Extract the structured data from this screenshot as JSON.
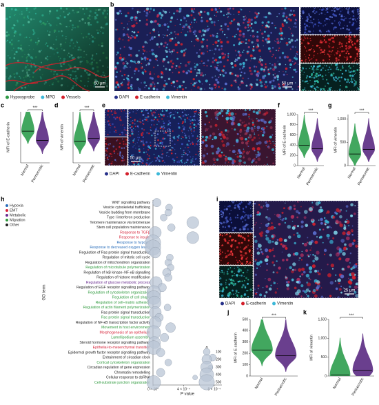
{
  "panels": {
    "a": {
      "label": "a",
      "scale_bar": "50 μm",
      "legend": [
        {
          "name": "Hypoxyprobe",
          "color": "#2f9a46"
        },
        {
          "name": "MPO",
          "color": "#3cb8d8"
        },
        {
          "name": "Vessels",
          "color": "#d4202c"
        }
      ]
    },
    "b": {
      "label": "b",
      "scale_bar": "50 μm",
      "legend": [
        {
          "name": "DAPI",
          "color": "#27318a"
        },
        {
          "name": "E-cadherin",
          "color": "#d4202c"
        },
        {
          "name": "Vimentin",
          "color": "#3cb8d8"
        }
      ]
    },
    "e": {
      "label": "e",
      "scale_bar": "50 μm",
      "legend": [
        {
          "name": "DAPI",
          "color": "#27318a"
        },
        {
          "name": "E-cadherin",
          "color": "#d4202c"
        },
        {
          "name": "Vimentin",
          "color": "#3cb8d8"
        }
      ]
    },
    "i": {
      "label": "i",
      "scale_bar": "25 μm",
      "legend": [
        {
          "name": "DAPI",
          "color": "#27318a"
        },
        {
          "name": "E-cadherin",
          "color": "#d4202c"
        },
        {
          "name": "Vimentin",
          "color": "#3cb8d8"
        }
      ]
    }
  },
  "chart_data": [
    {
      "type": "violin",
      "label": "c",
      "ylabel": "MFI of E-cadherin",
      "categories": [
        "Normal",
        "Perinecrotic"
      ],
      "values": [
        620,
        440
      ],
      "colors": [
        "#2e9d4e",
        "#5a2a82"
      ],
      "annotation": "***",
      "ylim": [
        0,
        1000
      ]
    },
    {
      "type": "violin",
      "label": "d",
      "ylabel": "MFI of vimentin",
      "categories": [
        "Normal",
        "Perinecrotic"
      ],
      "values": [
        420,
        480
      ],
      "colors": [
        "#2e9d4e",
        "#5a2a82"
      ],
      "annotation": "***",
      "ylim": [
        0,
        1000
      ]
    },
    {
      "type": "violin",
      "label": "f",
      "ylabel": "MFI of E-cadherin",
      "categories": [
        "Normal",
        "Perinecrotic"
      ],
      "values": [
        400,
        330
      ],
      "colors": [
        "#2e9d4e",
        "#5a2a82"
      ],
      "annotation": "***",
      "ylim": [
        0,
        1000
      ],
      "yticks": [
        0,
        200,
        400,
        600,
        800,
        {
          "value": 1000,
          "label": "1,000"
        }
      ]
    },
    {
      "type": "violin",
      "label": "g",
      "ylabel": "MFI of vimentin",
      "categories": [
        "Normal",
        "Perinecrotic"
      ],
      "values": [
        250,
        350
      ],
      "colors": [
        "#2e9d4e",
        "#5a2a82"
      ],
      "annotation": "***",
      "ylim": [
        0,
        1100
      ],
      "yticks": [
        0,
        500,
        {
          "value": 1000,
          "label": "1,000"
        }
      ]
    },
    {
      "type": "violin",
      "label": "j",
      "ylabel": "MFI of E-cadherin",
      "categories": [
        "Normal",
        "Perinecrotic"
      ],
      "values": [
        230,
        180
      ],
      "colors": [
        "#2e9d4e",
        "#5a2a82"
      ],
      "annotation": "***",
      "ylim": [
        0,
        500
      ],
      "yticks": [
        0,
        100,
        200,
        300,
        400,
        500
      ]
    },
    {
      "type": "violin",
      "label": "k",
      "ylabel": "MFI of vimentin",
      "categories": [
        "Normal",
        "Perinecrotic"
      ],
      "values": [
        30,
        150
      ],
      "colors": [
        "#2e9d4e",
        "#5a2a82"
      ],
      "annotation": "***",
      "ylim": [
        0,
        1500
      ],
      "yticks": [
        0,
        500,
        {
          "value": 1000,
          "label": "1,000"
        },
        {
          "value": 1500,
          "label": "1,500"
        }
      ]
    },
    {
      "type": "bubble",
      "label": "h",
      "ylabel": "GO term",
      "xlabel": "P value",
      "color": "#b9c6d6",
      "groups": [
        {
          "name": "Hypoxia",
          "color": "#2a6ebb"
        },
        {
          "name": "EMT",
          "color": "#d6243a"
        },
        {
          "name": "Metabolic",
          "color": "#6a2c91"
        },
        {
          "name": "Migration",
          "color": "#2f9a3e"
        },
        {
          "name": "Other",
          "color": "#222222"
        }
      ],
      "categories": [
        "WNT signalling pathway",
        "Vesicle cytoskeletal trafficking",
        "Vesicle budding from membrane",
        "Type I interferon production",
        "Telomere maintenance via telomerase",
        "Stem cell population maintenance",
        "Response to TGFβ",
        "Response to insulin",
        "Response to hypoxia",
        "Response to decreased oxygen levels",
        "Regulation of Ras protein signal transduction",
        "Regulation of mitotic cell cycle",
        "Regulation of mitochondrion organization",
        "Regulation of microtubule polymerization",
        "Regulation of IκB kinase–NF-κB signalling",
        "Regulation of histone modification",
        "Regulation of glucose metabolic process",
        "Regulation of EGF receptor signalling pathway",
        "Regulation of cytoskeleton organization",
        "Regulation of cell shape",
        "Regulation of cell–matrix adhesion",
        "Regulation of actin filament polymerization",
        "Ras protein signal transduction",
        "Rac protein signal transduction",
        "Regulation of NF-κB transcription factor activity",
        "Movement in host environment",
        "Morphogenesis of an epithelium",
        "Lamellipodium assembly",
        "Steroid hormone receptor signalling pathway",
        "Epithelial-to-mesenchymal transition",
        "Epidermal growth factor receptor signalling pathway",
        "Entrainment of circadian clock",
        "Cortical cytoskeleton organization",
        "Circadian regulation of gene expression",
        "Chromatin remodelling",
        "Cellular response to dsRNA",
        "Cell-substrate junction organization"
      ],
      "term_group": [
        4,
        4,
        4,
        4,
        4,
        4,
        1,
        1,
        0,
        0,
        4,
        4,
        4,
        3,
        4,
        4,
        2,
        4,
        3,
        3,
        3,
        3,
        4,
        3,
        4,
        3,
        1,
        3,
        4,
        1,
        4,
        4,
        3,
        4,
        4,
        4,
        3
      ],
      "x": [
        5e-05,
        0.00021,
        0.0002,
        0.00014,
        0.00052,
        0.00024,
        3e-05,
        0.00052,
        0,
        0,
        3e-05,
        0.00022,
        0.0002,
        0.00023,
        0.00018,
        0.0002,
        4e-05,
        0.00012,
        1e-05,
        1e-05,
        2e-05,
        0.00019,
        3e-05,
        8e-05,
        3e-05,
        0.00023,
        1e-05,
        0.00015,
        2e-05,
        1e-05,
        0.0001,
        0.00078,
        0.0002,
        0.00075,
        0.0001,
        0.00055,
        1e-05
      ],
      "sizes": [
        150,
        100,
        100,
        100,
        300,
        120,
        300,
        300,
        500,
        500,
        250,
        100,
        100,
        100,
        150,
        120,
        300,
        150,
        400,
        400,
        350,
        100,
        300,
        150,
        300,
        200,
        400,
        150,
        300,
        400,
        150,
        100,
        100,
        50,
        150,
        50,
        400
      ],
      "size_legend": {
        "title": "n",
        "values": [
          100,
          200,
          300,
          400,
          500
        ]
      },
      "xlim": [
        0,
        0.0009
      ],
      "xticks": [
        {
          "value": 0,
          "label": "0 × 10⁰"
        },
        {
          "value": 0.0004,
          "label": "4 × 10⁻⁴"
        },
        {
          "value": 0.0008,
          "label": "8 × 10⁻⁴"
        }
      ]
    }
  ]
}
